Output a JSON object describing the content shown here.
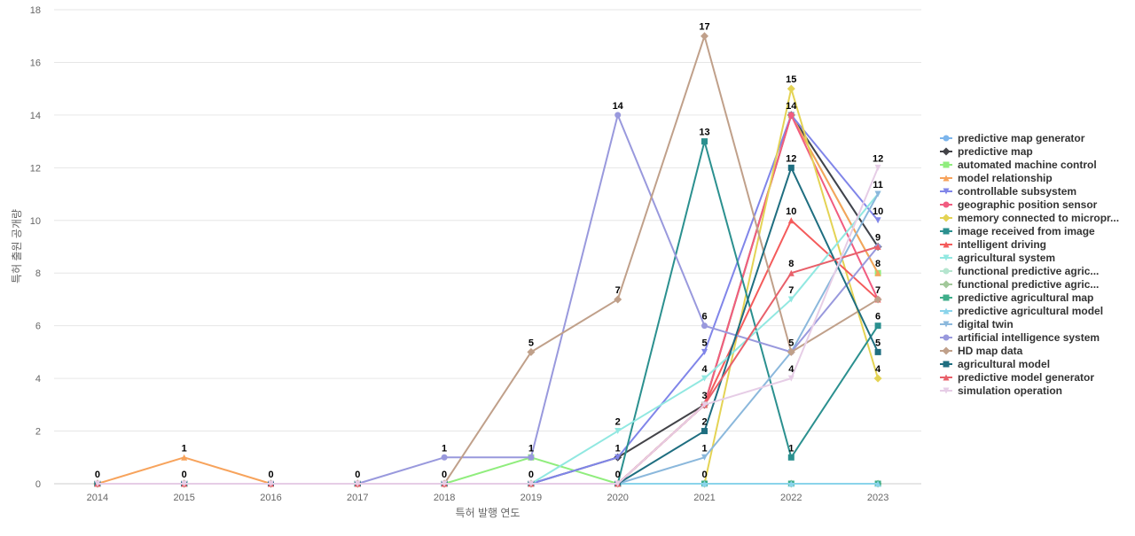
{
  "chart_data": {
    "type": "line",
    "title": "",
    "xlabel": "특허 발행 연도",
    "ylabel": "특허 출원 공개량",
    "ylim": [
      0,
      18
    ],
    "yticks": [
      0,
      2,
      4,
      6,
      8,
      10,
      12,
      14,
      16,
      18
    ],
    "grid": true,
    "legend_position": "right",
    "categories": [
      "2014",
      "2015",
      "2016",
      "2017",
      "2018",
      "2019",
      "2020",
      "2021",
      "2022",
      "2023"
    ],
    "series": [
      {
        "name": "predictive map generator",
        "color": "#7cb5ec",
        "marker": "circle",
        "values": [
          0,
          0,
          0,
          0,
          0,
          0,
          0,
          3,
          14,
          9
        ]
      },
      {
        "name": "predictive map",
        "color": "#434348",
        "marker": "diamond",
        "values": [
          0,
          0,
          0,
          0,
          0,
          0,
          1,
          3,
          14,
          9
        ]
      },
      {
        "name": "automated machine control",
        "color": "#90ed7d",
        "marker": "square",
        "values": [
          0,
          0,
          0,
          0,
          0,
          1,
          0,
          3,
          14,
          8
        ]
      },
      {
        "name": "model relationship",
        "color": "#f7a35c",
        "marker": "triangle",
        "values": [
          0,
          1,
          0,
          0,
          0,
          0,
          0,
          3,
          14,
          8
        ]
      },
      {
        "name": "controllable subsystem",
        "color": "#8085e9",
        "marker": "triangle-down",
        "values": [
          0,
          0,
          0,
          0,
          0,
          0,
          1,
          5,
          14,
          10
        ]
      },
      {
        "name": "geographic position sensor",
        "color": "#f15c80",
        "marker": "circle",
        "values": [
          0,
          0,
          0,
          0,
          0,
          0,
          0,
          3,
          14,
          7
        ]
      },
      {
        "name": "memory connected to micropr...",
        "color": "#e4d354",
        "marker": "diamond",
        "values": [
          0,
          0,
          0,
          0,
          0,
          0,
          0,
          0,
          15,
          4
        ]
      },
      {
        "name": "image received from image",
        "color": "#2b908f",
        "marker": "square",
        "values": [
          0,
          0,
          0,
          0,
          0,
          0,
          0,
          13,
          1,
          6
        ]
      },
      {
        "name": "intelligent driving",
        "color": "#f45b5b",
        "marker": "triangle",
        "values": [
          0,
          0,
          0,
          0,
          0,
          0,
          0,
          3,
          10,
          7
        ]
      },
      {
        "name": "agricultural system",
        "color": "#91e8e1",
        "marker": "triangle-down",
        "values": [
          0,
          0,
          0,
          0,
          0,
          0,
          2,
          4,
          7,
          11
        ]
      },
      {
        "name": "functional predictive agric...",
        "color": "#b5e5cf",
        "marker": "circle",
        "values": [
          0,
          0,
          0,
          0,
          0,
          0,
          0,
          0,
          0,
          0
        ]
      },
      {
        "name": "functional predictive agric...",
        "color": "#a2c89a",
        "marker": "diamond",
        "values": [
          0,
          0,
          0,
          0,
          0,
          0,
          0,
          0,
          0,
          0
        ]
      },
      {
        "name": "predictive agricultural map",
        "color": "#3fae8a",
        "marker": "square",
        "values": [
          0,
          0,
          0,
          0,
          0,
          0,
          0,
          0,
          0,
          0
        ]
      },
      {
        "name": "predictive agricultural model",
        "color": "#8ad4eb",
        "marker": "triangle",
        "values": [
          0,
          0,
          0,
          0,
          0,
          0,
          0,
          0,
          0,
          0
        ]
      },
      {
        "name": "digital twin",
        "color": "#8bb8dc",
        "marker": "triangle-down",
        "values": [
          0,
          0,
          0,
          0,
          0,
          0,
          0,
          1,
          5,
          11
        ]
      },
      {
        "name": "artificial intelligence system",
        "color": "#9999dd",
        "marker": "circle",
        "values": [
          0,
          0,
          0,
          0,
          1,
          1,
          14,
          6,
          5,
          9
        ]
      },
      {
        "name": "HD map data",
        "color": "#c0a08a",
        "marker": "diamond",
        "values": [
          0,
          0,
          0,
          0,
          0,
          5,
          7,
          17,
          5,
          7
        ]
      },
      {
        "name": "agricultural model",
        "color": "#1f6e80",
        "marker": "square",
        "values": [
          0,
          0,
          0,
          0,
          0,
          0,
          0,
          2,
          12,
          5
        ]
      },
      {
        "name": "predictive model generator",
        "color": "#e8606a",
        "marker": "triangle",
        "values": [
          0,
          0,
          0,
          0,
          0,
          0,
          0,
          3,
          8,
          9
        ]
      },
      {
        "name": "simulation operation",
        "color": "#e6cde6",
        "marker": "triangle-down",
        "values": [
          0,
          0,
          0,
          0,
          0,
          0,
          0,
          3,
          4,
          12
        ]
      }
    ],
    "data_labels": [
      {
        "x": "2014",
        "y": 0
      },
      {
        "x": "2015",
        "y": 1
      },
      {
        "x": "2015",
        "y": 0
      },
      {
        "x": "2016",
        "y": 0
      },
      {
        "x": "2017",
        "y": 0
      },
      {
        "x": "2018",
        "y": 1
      },
      {
        "x": "2018",
        "y": 0
      },
      {
        "x": "2019",
        "y": 5
      },
      {
        "x": "2019",
        "y": 1
      },
      {
        "x": "2019",
        "y": 0
      },
      {
        "x": "2020",
        "y": 14
      },
      {
        "x": "2020",
        "y": 7
      },
      {
        "x": "2020",
        "y": 2
      },
      {
        "x": "2020",
        "y": 1
      },
      {
        "x": "2020",
        "y": 0
      },
      {
        "x": "2021",
        "y": 17
      },
      {
        "x": "2021",
        "y": 13
      },
      {
        "x": "2021",
        "y": 6
      },
      {
        "x": "2021",
        "y": 5
      },
      {
        "x": "2021",
        "y": 4
      },
      {
        "x": "2021",
        "y": 3
      },
      {
        "x": "2021",
        "y": 2
      },
      {
        "x": "2021",
        "y": 1
      },
      {
        "x": "2021",
        "y": 0
      },
      {
        "x": "2022",
        "y": 15
      },
      {
        "x": "2022",
        "y": 14
      },
      {
        "x": "2022",
        "y": 12
      },
      {
        "x": "2022",
        "y": 10
      },
      {
        "x": "2022",
        "y": 8
      },
      {
        "x": "2022",
        "y": 7
      },
      {
        "x": "2022",
        "y": 5
      },
      {
        "x": "2022",
        "y": 4
      },
      {
        "x": "2022",
        "y": 1
      },
      {
        "x": "2023",
        "y": 12
      },
      {
        "x": "2023",
        "y": 11
      },
      {
        "x": "2023",
        "y": 10
      },
      {
        "x": "2023",
        "y": 9
      },
      {
        "x": "2023",
        "y": 8
      },
      {
        "x": "2023",
        "y": 7
      },
      {
        "x": "2023",
        "y": 6
      },
      {
        "x": "2023",
        "y": 5
      },
      {
        "x": "2023",
        "y": 4
      }
    ]
  }
}
